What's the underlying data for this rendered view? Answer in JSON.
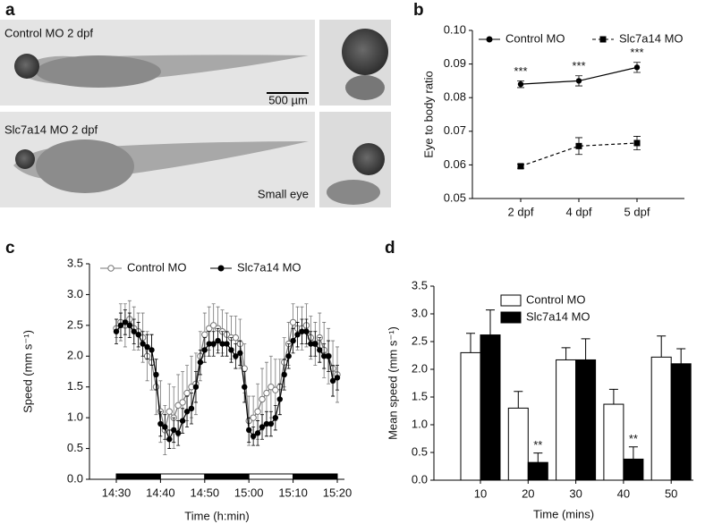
{
  "figure_a": {
    "panel_label": "a",
    "top_label": "Control MO 2 dpf",
    "bottom_label": "Slc7a14 MO 2 dpf",
    "bottom_note": "Small eye",
    "scale_bar": "500 µm"
  },
  "chart_data": [
    {
      "panel_label": "b",
      "type": "line",
      "ylabel": "Eye to body ratio",
      "categories": [
        "2 dpf",
        "4 dpf",
        "5 dpf"
      ],
      "series": [
        {
          "name": "Control MO",
          "color": "#000000",
          "line_style": "solid",
          "marker": "circle",
          "values": [
            0.084,
            0.085,
            0.089
          ],
          "errors": [
            0.001,
            0.0015,
            0.0015
          ],
          "annotations": [
            "***",
            "***",
            "***"
          ]
        },
        {
          "name": "Slc7a14 MO",
          "color": "#000000",
          "line_style": "dashed",
          "marker": "square",
          "values": [
            0.0596,
            0.0656,
            0.0665
          ],
          "errors": [
            0.0006,
            0.0025,
            0.002
          ]
        }
      ],
      "ylim": [
        0.05,
        0.1
      ],
      "yticks": [
        0.05,
        0.06,
        0.07,
        0.08,
        0.09,
        {
          "value": 0.1,
          "label": "0.10"
        }
      ]
    },
    {
      "panel_label": "c",
      "type": "line",
      "xlabel": "Time (h:min)",
      "ylabel": "Speed (mm s⁻¹)",
      "categories": [
        "14:30",
        null,
        null,
        null,
        null,
        null,
        null,
        null,
        null,
        null,
        "14:40",
        null,
        null,
        null,
        null,
        null,
        null,
        null,
        null,
        null,
        "14:50",
        null,
        null,
        null,
        null,
        null,
        null,
        null,
        null,
        null,
        "15:00",
        null,
        null,
        null,
        null,
        null,
        null,
        null,
        null,
        null,
        "15:10",
        null,
        null,
        null,
        null,
        null,
        null,
        null,
        null,
        null,
        "15:20"
      ],
      "series": [
        {
          "name": "Control MO",
          "color": "#777777",
          "line_style": "solid",
          "marker": "open-circle",
          "values": [
            2.45,
            2.55,
            2.5,
            2.6,
            2.45,
            2.4,
            2.3,
            2.0,
            1.9,
            1.5,
            1.1,
            0.8,
            1.1,
            1.0,
            1.2,
            1.25,
            1.4,
            1.5,
            1.55,
            2.0,
            2.35,
            2.45,
            2.5,
            2.45,
            2.4,
            2.35,
            2.3,
            2.3,
            2.2,
            1.8,
            0.95,
            1.0,
            1.1,
            1.3,
            1.4,
            1.5,
            1.45,
            1.5,
            1.9,
            2.2,
            2.55,
            2.45,
            2.45,
            2.5,
            2.3,
            2.2,
            2.3,
            2.1,
            2.0,
            1.8,
            1.7
          ],
          "errors": [
            0.15,
            0.3,
            0.35,
            0.3,
            0.35,
            0.3,
            0.4,
            0.4,
            0.45,
            0.45,
            0.5,
            0.4,
            0.45,
            0.5,
            0.5,
            0.5,
            0.45,
            0.5,
            0.5,
            0.4,
            0.35,
            0.35,
            0.35,
            0.35,
            0.35,
            0.35,
            0.35,
            0.35,
            0.4,
            0.4,
            0.4,
            0.35,
            0.45,
            0.5,
            0.5,
            0.5,
            0.5,
            0.45,
            0.4,
            0.35,
            0.3,
            0.35,
            0.35,
            0.35,
            0.35,
            0.35,
            0.4,
            0.45,
            0.45,
            0.45,
            0.45
          ]
        },
        {
          "name": "Slc7a14 MO",
          "color": "#000000",
          "line_style": "solid",
          "marker": "circle",
          "values": [
            2.4,
            2.5,
            2.55,
            2.5,
            2.4,
            2.35,
            2.2,
            2.15,
            2.1,
            1.7,
            0.9,
            0.85,
            0.65,
            0.8,
            0.75,
            0.95,
            1.1,
            1.15,
            1.5,
            1.9,
            2.1,
            2.2,
            2.2,
            2.25,
            2.2,
            2.2,
            2.1,
            2.0,
            2.05,
            1.5,
            0.8,
            0.7,
            0.75,
            0.85,
            0.9,
            0.9,
            1.0,
            1.3,
            1.7,
            2.0,
            2.25,
            2.35,
            2.4,
            2.4,
            2.2,
            2.2,
            2.1,
            2.0,
            2.0,
            1.6,
            1.65
          ],
          "errors": [
            0.2,
            0.2,
            0.2,
            0.2,
            0.2,
            0.2,
            0.2,
            0.2,
            0.25,
            0.25,
            0.2,
            0.2,
            0.15,
            0.2,
            0.2,
            0.2,
            0.25,
            0.25,
            0.25,
            0.2,
            0.2,
            0.2,
            0.2,
            0.2,
            0.2,
            0.2,
            0.2,
            0.2,
            0.2,
            0.25,
            0.2,
            0.15,
            0.2,
            0.2,
            0.2,
            0.2,
            0.2,
            0.25,
            0.25,
            0.2,
            0.2,
            0.2,
            0.2,
            0.2,
            0.2,
            0.2,
            0.2,
            0.2,
            0.25,
            0.25,
            0.2
          ]
        }
      ],
      "ylim": [
        0,
        3.5
      ],
      "yticks": [
        {
          "value": 0,
          "label": "0.0"
        },
        0.5,
        {
          "value": 1,
          "label": "1.0"
        },
        1.5,
        {
          "value": 2,
          "label": "2.0"
        },
        2.5,
        {
          "value": 3,
          "label": "3.0"
        },
        3.5
      ]
    },
    {
      "panel_label": "d",
      "type": "bar",
      "xlabel": "Time (mins)",
      "ylabel": "Mean speed (mm s⁻¹)",
      "categories": [
        "10",
        "20",
        "30",
        "40",
        "50"
      ],
      "series": [
        {
          "name": "Control MO",
          "color": "#ffffff",
          "values": [
            2.3,
            1.3,
            2.17,
            1.37,
            2.22
          ],
          "errors": [
            0.35,
            0.3,
            0.22,
            0.27,
            0.38
          ]
        },
        {
          "name": "Slc7a14 MO",
          "color": "#000000",
          "values": [
            2.62,
            0.32,
            2.17,
            0.38,
            2.1
          ],
          "errors": [
            0.45,
            0.17,
            0.38,
            0.22,
            0.27
          ],
          "annotations": [
            null,
            "**",
            null,
            "**",
            null
          ]
        }
      ],
      "ylim": [
        0,
        3.5
      ],
      "yticks": [
        {
          "value": 0,
          "label": "0.0"
        },
        0.5,
        {
          "value": 1,
          "label": "1.0"
        },
        1.5,
        {
          "value": 2,
          "label": "2.0"
        },
        2.5,
        {
          "value": 3,
          "label": "3.0"
        },
        3.5
      ]
    }
  ]
}
